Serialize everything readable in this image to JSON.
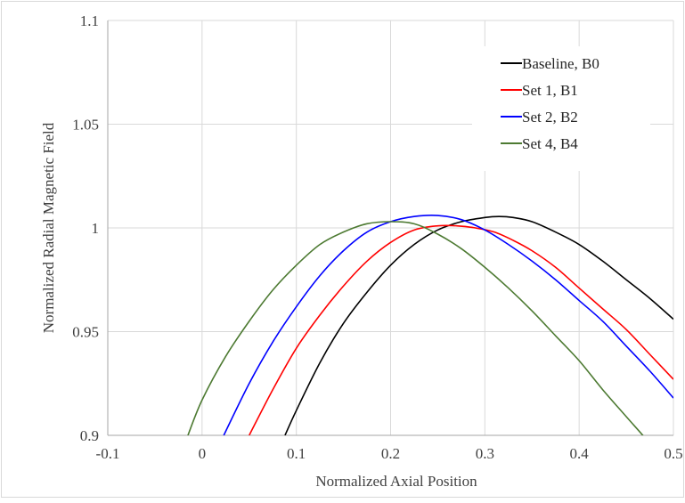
{
  "chart_data": {
    "type": "line",
    "title": "",
    "xlabel": "Normalized Axial Position",
    "ylabel": "Normalized Radial Magnetic Field",
    "xlim": [
      -0.1,
      0.5
    ],
    "ylim": [
      0.9,
      1.1
    ],
    "x_ticks": [
      -0.1,
      0,
      0.1,
      0.2,
      0.3,
      0.4,
      0.5
    ],
    "x_tick_labels": [
      "-0.1",
      "0",
      "0.1",
      "0.2",
      "0.3",
      "0.4",
      "0.5"
    ],
    "y_ticks": [
      0.9,
      0.95,
      1,
      1.05,
      1.1
    ],
    "y_tick_labels": [
      "0.9",
      "0.95",
      "1",
      "1.05",
      "1.1"
    ],
    "grid": true,
    "legend_position": "top-right",
    "series": [
      {
        "name": "Baseline, B0",
        "color": "#000000",
        "x": [
          0.088,
          0.1,
          0.125,
          0.15,
          0.175,
          0.2,
          0.225,
          0.25,
          0.275,
          0.3,
          0.315,
          0.33,
          0.35,
          0.375,
          0.4,
          0.425,
          0.45,
          0.475,
          0.5
        ],
        "y": [
          0.9,
          0.912,
          0.935,
          0.954,
          0.969,
          0.982,
          0.992,
          0.999,
          1.003,
          1.005,
          1.0055,
          1.005,
          1.003,
          0.998,
          0.992,
          0.984,
          0.975,
          0.966,
          0.956
        ]
      },
      {
        "name": "Set 1, B1",
        "color": "#ff0000",
        "x": [
          0.05,
          0.075,
          0.1,
          0.125,
          0.15,
          0.175,
          0.2,
          0.225,
          0.25,
          0.27,
          0.29,
          0.31,
          0.33,
          0.35,
          0.375,
          0.4,
          0.425,
          0.45,
          0.475,
          0.5
        ],
        "y": [
          0.9,
          0.922,
          0.942,
          0.958,
          0.972,
          0.984,
          0.993,
          0.999,
          1.001,
          1.001,
          1.0,
          0.998,
          0.994,
          0.989,
          0.981,
          0.971,
          0.961,
          0.951,
          0.939,
          0.927
        ]
      },
      {
        "name": "Set 2, B2",
        "color": "#0000ff",
        "x": [
          0.023,
          0.05,
          0.075,
          0.1,
          0.125,
          0.15,
          0.175,
          0.2,
          0.225,
          0.25,
          0.275,
          0.3,
          0.325,
          0.35,
          0.375,
          0.4,
          0.425,
          0.45,
          0.475,
          0.5
        ],
        "y": [
          0.9,
          0.925,
          0.945,
          0.962,
          0.977,
          0.989,
          0.998,
          1.003,
          1.0055,
          1.006,
          1.004,
          0.999,
          0.992,
          0.984,
          0.975,
          0.965,
          0.955,
          0.943,
          0.931,
          0.918
        ]
      },
      {
        "name": "Set 4, B4",
        "color": "#4d7a32",
        "x": [
          -0.015,
          0,
          0.025,
          0.05,
          0.075,
          0.1,
          0.125,
          0.15,
          0.175,
          0.2,
          0.225,
          0.25,
          0.275,
          0.3,
          0.325,
          0.35,
          0.375,
          0.4,
          0.425,
          0.45,
          0.475,
          0.485
        ],
        "y": [
          0.9,
          0.917,
          0.938,
          0.955,
          0.97,
          0.982,
          0.992,
          0.998,
          1.002,
          1.003,
          1.002,
          0.997,
          0.99,
          0.981,
          0.971,
          0.96,
          0.948,
          0.936,
          0.922,
          0.909,
          0.896,
          0.889
        ]
      }
    ]
  }
}
